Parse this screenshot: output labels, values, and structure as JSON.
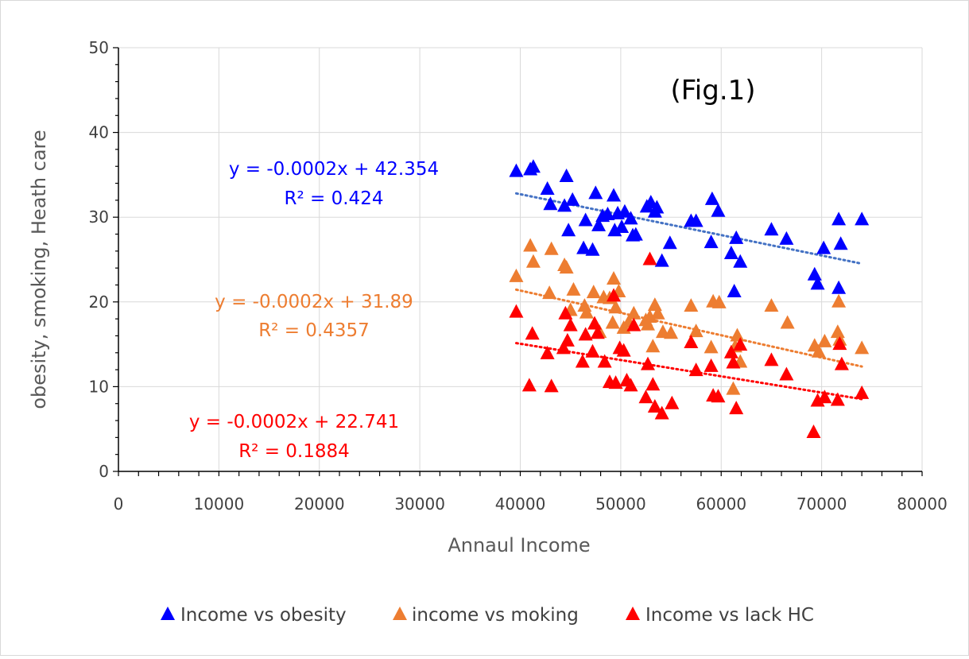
{
  "chart_data": {
    "type": "scatter",
    "title": "",
    "annotation": "(Fig.1)",
    "xlabel": "Annaul Income",
    "ylabel": "obesity, smoking, Heath care",
    "xlim": [
      0,
      80000
    ],
    "ylim": [
      0,
      50
    ],
    "xticks": [
      0,
      10000,
      20000,
      30000,
      40000,
      50000,
      60000,
      70000,
      80000
    ],
    "xtick_labels": [
      "0",
      "10000",
      "20000",
      "30000",
      "40000",
      "50000",
      "60000",
      "70000",
      "80000"
    ],
    "yticks": [
      0,
      10,
      20,
      30,
      40,
      50
    ],
    "ytick_labels": [
      "0",
      "10",
      "20",
      "30",
      "40",
      "50"
    ],
    "grid": true,
    "legend_position": "bottom",
    "marker": "triangle",
    "series": [
      {
        "name": "Income vs obesity",
        "color": "#0000ff",
        "trend_color": "#4472c4",
        "equation": "y = -0.0002x + 42.354",
        "r2": "R² = 0.424",
        "trend": {
          "slope": -0.0002411,
          "intercept": 42.354,
          "x_range": [
            39600,
            74000
          ]
        },
        "points": [
          [
            39600,
            35.4
          ],
          [
            41000,
            35.6
          ],
          [
            41300,
            35.9
          ],
          [
            42700,
            33.3
          ],
          [
            43000,
            31.5
          ],
          [
            44400,
            31.3
          ],
          [
            44600,
            34.8
          ],
          [
            44800,
            28.4
          ],
          [
            45200,
            32.0
          ],
          [
            46300,
            26.3
          ],
          [
            46500,
            29.6
          ],
          [
            47200,
            26.1
          ],
          [
            47500,
            32.8
          ],
          [
            47800,
            29.0
          ],
          [
            48200,
            30.1
          ],
          [
            48700,
            30.3
          ],
          [
            49300,
            32.5
          ],
          [
            49400,
            28.4
          ],
          [
            49700,
            30.4
          ],
          [
            50100,
            28.8
          ],
          [
            50400,
            30.6
          ],
          [
            51000,
            29.8
          ],
          [
            51200,
            27.8
          ],
          [
            51500,
            27.9
          ],
          [
            52600,
            31.2
          ],
          [
            53000,
            31.7
          ],
          [
            53400,
            30.6
          ],
          [
            53600,
            31.1
          ],
          [
            54100,
            24.8
          ],
          [
            54900,
            26.9
          ],
          [
            57000,
            29.5
          ],
          [
            57500,
            29.5
          ],
          [
            59000,
            27.0
          ],
          [
            59100,
            32.1
          ],
          [
            59700,
            30.7
          ],
          [
            61000,
            25.7
          ],
          [
            61300,
            21.2
          ],
          [
            61500,
            27.5
          ],
          [
            61900,
            24.7
          ],
          [
            65000,
            28.5
          ],
          [
            66500,
            27.4
          ],
          [
            69300,
            23.2
          ],
          [
            69600,
            22.1
          ],
          [
            70200,
            26.3
          ],
          [
            71700,
            29.7
          ],
          [
            71700,
            21.6
          ],
          [
            71900,
            26.8
          ],
          [
            74000,
            29.7
          ]
        ]
      },
      {
        "name": "income vs moking",
        "color": "#ed7d31",
        "trend_color": "#ed7d31",
        "equation": "y = -0.0002x + 31.89",
        "r2": "R² = 0.4357",
        "trend": {
          "slope": -0.0002637,
          "intercept": 31.89,
          "x_range": [
            39600,
            74000
          ]
        },
        "points": [
          [
            39600,
            23.0
          ],
          [
            41000,
            26.6
          ],
          [
            41300,
            24.7
          ],
          [
            42900,
            21.0
          ],
          [
            43100,
            26.2
          ],
          [
            44400,
            24.3
          ],
          [
            44600,
            24.0
          ],
          [
            45000,
            19.0
          ],
          [
            45300,
            21.4
          ],
          [
            46400,
            19.5
          ],
          [
            46600,
            18.7
          ],
          [
            47300,
            21.1
          ],
          [
            47900,
            16.4
          ],
          [
            48300,
            20.5
          ],
          [
            48900,
            20.4
          ],
          [
            49200,
            17.5
          ],
          [
            49300,
            22.7
          ],
          [
            49500,
            19.3
          ],
          [
            49800,
            21.2
          ],
          [
            50300,
            16.9
          ],
          [
            50800,
            17.6
          ],
          [
            51300,
            18.6
          ],
          [
            52500,
            17.8
          ],
          [
            52700,
            17.3
          ],
          [
            52900,
            18.2
          ],
          [
            53200,
            14.7
          ],
          [
            53400,
            19.6
          ],
          [
            53700,
            18.6
          ],
          [
            54200,
            16.4
          ],
          [
            55000,
            16.3
          ],
          [
            57000,
            19.5
          ],
          [
            57500,
            16.5
          ],
          [
            59000,
            14.6
          ],
          [
            59200,
            20.0
          ],
          [
            59800,
            19.9
          ],
          [
            61200,
            9.7
          ],
          [
            61400,
            14.7
          ],
          [
            61600,
            16.0
          ],
          [
            61900,
            12.9
          ],
          [
            65000,
            19.5
          ],
          [
            66600,
            17.5
          ],
          [
            69300,
            14.8
          ],
          [
            69700,
            14.1
          ],
          [
            70300,
            15.3
          ],
          [
            71600,
            16.4
          ],
          [
            71700,
            20.0
          ],
          [
            71800,
            15.5
          ],
          [
            74000,
            14.5
          ]
        ]
      },
      {
        "name": "Income vs lack HC",
        "color": "#ff0000",
        "trend_color": "#ff0000",
        "equation": "y = -0.0002x + 22.741",
        "r2": "R² = 0.1884",
        "trend": {
          "slope": -0.000192,
          "intercept": 22.741,
          "x_range": [
            39600,
            74000
          ]
        },
        "points": [
          [
            39600,
            18.8
          ],
          [
            40900,
            10.1
          ],
          [
            41200,
            16.2
          ],
          [
            42700,
            13.9
          ],
          [
            43100,
            10.0
          ],
          [
            44300,
            14.5
          ],
          [
            44500,
            18.6
          ],
          [
            44700,
            15.4
          ],
          [
            45000,
            17.2
          ],
          [
            46200,
            12.9
          ],
          [
            46500,
            16.1
          ],
          [
            47200,
            14.1
          ],
          [
            47400,
            17.4
          ],
          [
            47700,
            16.3
          ],
          [
            48400,
            12.9
          ],
          [
            48900,
            10.5
          ],
          [
            49300,
            20.7
          ],
          [
            49500,
            10.4
          ],
          [
            49900,
            14.5
          ],
          [
            50300,
            14.2
          ],
          [
            50600,
            10.7
          ],
          [
            51000,
            10.1
          ],
          [
            51300,
            17.2
          ],
          [
            52500,
            8.7
          ],
          [
            52700,
            12.6
          ],
          [
            52900,
            25.0
          ],
          [
            53200,
            10.2
          ],
          [
            53400,
            7.6
          ],
          [
            54100,
            6.8
          ],
          [
            55100,
            8.0
          ],
          [
            57000,
            15.2
          ],
          [
            57500,
            11.9
          ],
          [
            59000,
            12.4
          ],
          [
            59200,
            8.9
          ],
          [
            59700,
            8.8
          ],
          [
            61000,
            14.0
          ],
          [
            61200,
            12.8
          ],
          [
            61500,
            7.4
          ],
          [
            61900,
            14.9
          ],
          [
            65000,
            13.1
          ],
          [
            66500,
            11.4
          ],
          [
            69200,
            4.6
          ],
          [
            69600,
            8.3
          ],
          [
            70300,
            8.7
          ],
          [
            71600,
            8.4
          ],
          [
            71800,
            15.0
          ],
          [
            72000,
            12.6
          ],
          [
            74000,
            9.2
          ]
        ]
      }
    ]
  }
}
